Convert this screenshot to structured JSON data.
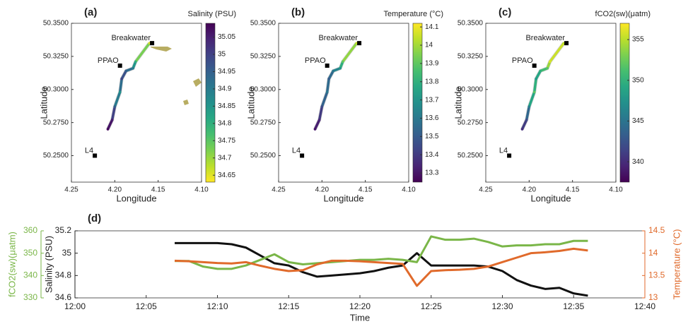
{
  "chart_data": [
    {
      "type": "map",
      "title": "(a)",
      "xlabel": "Longitude",
      "ylabel": "Latitude",
      "xlim": [
        4.25,
        4.1
      ],
      "ylim": [
        50.23,
        50.35
      ],
      "xticks": [
        4.25,
        {
          "value": 4.2,
          "label": "4.20"
        },
        4.15,
        {
          "value": 4.1,
          "label": "4.10"
        }
      ],
      "yticks": [
        {
          "value": 50.25,
          "label": "50.2500"
        },
        {
          "value": 50.275,
          "label": "50.2750"
        },
        {
          "value": 50.3,
          "label": "50.3000"
        },
        {
          "value": 50.325,
          "label": "50.3250"
        },
        {
          "value": 50.35,
          "label": "50.3500"
        }
      ],
      "markers": [
        {
          "name": "Breakwater",
          "x": 4.157,
          "y": 50.335
        },
        {
          "name": "PPAO",
          "x": 4.194,
          "y": 50.318
        },
        {
          "name": "L4",
          "x": 4.223,
          "y": 50.25
        }
      ],
      "track": {
        "x": [
          4.16,
          4.176,
          4.179,
          4.187,
          4.192,
          4.194,
          4.2,
          4.203,
          4.208
        ],
        "y": [
          50.335,
          50.321,
          50.316,
          50.314,
          50.308,
          50.298,
          50.287,
          50.277,
          50.27
        ],
        "values": [
          34.65,
          34.8,
          34.9,
          34.95,
          35.0,
          34.85,
          34.95,
          35.05,
          35.08
        ]
      },
      "colorbar": {
        "label": "Salinity (PSU)",
        "lim": [
          34.63,
          35.09
        ],
        "ticks": [
          34.65,
          34.7,
          34.75,
          34.8,
          34.85,
          34.9,
          34.95,
          35,
          35.05
        ],
        "colormap": "viridis",
        "reverse": true
      }
    },
    {
      "type": "map",
      "title": "(b)",
      "xlabel": "Longitude",
      "ylabel": "Latitude",
      "xlim": [
        4.25,
        4.1
      ],
      "ylim": [
        50.23,
        50.35
      ],
      "xticks": [
        4.25,
        {
          "value": 4.2,
          "label": "4.20"
        },
        4.15,
        {
          "value": 4.1,
          "label": "4.10"
        }
      ],
      "yticks": [
        {
          "value": 50.25,
          "label": "50.2500"
        },
        {
          "value": 50.275,
          "label": "50.2750"
        },
        {
          "value": 50.3,
          "label": "50.3000"
        },
        {
          "value": 50.325,
          "label": "50.3250"
        },
        {
          "value": 50.35,
          "label": "50.3500"
        }
      ],
      "markers": [
        {
          "name": "Breakwater",
          "x": 4.157,
          "y": 50.335
        },
        {
          "name": "PPAO",
          "x": 4.194,
          "y": 50.318
        },
        {
          "name": "L4",
          "x": 4.223,
          "y": 50.25
        }
      ],
      "track": {
        "x": [
          4.16,
          4.176,
          4.179,
          4.187,
          4.192,
          4.194,
          4.2,
          4.203,
          4.208
        ],
        "y": [
          50.335,
          50.321,
          50.316,
          50.314,
          50.308,
          50.298,
          50.287,
          50.277,
          50.27
        ],
        "values": [
          14.05,
          13.9,
          13.7,
          13.6,
          13.5,
          13.6,
          13.45,
          13.35,
          13.3
        ]
      },
      "colorbar": {
        "label": "Temperature (°C)",
        "lim": [
          13.25,
          14.12
        ],
        "ticks": [
          13.3,
          13.4,
          13.5,
          13.6,
          13.7,
          13.8,
          13.9,
          14,
          14.1
        ],
        "colormap": "viridis",
        "reverse": false
      }
    },
    {
      "type": "map",
      "title": "(c)",
      "xlabel": "Longitude",
      "ylabel": "Latitude",
      "xlim": [
        4.25,
        4.1
      ],
      "ylim": [
        50.23,
        50.35
      ],
      "xticks": [
        4.25,
        {
          "value": 4.2,
          "label": "4.20"
        },
        4.15,
        {
          "value": 4.1,
          "label": "4.10"
        }
      ],
      "yticks": [
        {
          "value": 50.25,
          "label": "50.2500"
        },
        {
          "value": 50.275,
          "label": "50.2750"
        },
        {
          "value": 50.3,
          "label": "50.3000"
        },
        {
          "value": 50.325,
          "label": "50.3250"
        },
        {
          "value": 50.35,
          "label": "50.3500"
        }
      ],
      "markers": [
        {
          "name": "Breakwater",
          "x": 4.157,
          "y": 50.335
        },
        {
          "name": "PPAO",
          "x": 4.194,
          "y": 50.318
        },
        {
          "name": "L4",
          "x": 4.223,
          "y": 50.25
        }
      ],
      "track": {
        "x": [
          4.16,
          4.176,
          4.179,
          4.187,
          4.192,
          4.194,
          4.2,
          4.203,
          4.208
        ],
        "y": [
          50.335,
          50.321,
          50.316,
          50.314,
          50.308,
          50.298,
          50.287,
          50.277,
          50.27
        ],
        "values": [
          355,
          356,
          352,
          350,
          348,
          352,
          346,
          342,
          340
        ]
      },
      "colorbar": {
        "label": "fCO2(sw)(μatm)",
        "lim": [
          337.5,
          357
        ],
        "ticks": [
          340,
          345,
          350,
          355
        ],
        "colormap": "viridis",
        "reverse": false
      }
    },
    {
      "type": "line",
      "title": "(d)",
      "xlabel": "Time",
      "x": [
        "12:07",
        "12:08",
        "12:09",
        "12:10",
        "12:11",
        "12:12",
        "12:13",
        "12:14",
        "12:15",
        "12:16",
        "12:17",
        "12:18",
        "12:19",
        "12:20",
        "12:21",
        "12:22",
        "12:23",
        "12:24",
        "12:25",
        "12:26",
        "12:27",
        "12:28",
        "12:29",
        "12:30",
        "12:31",
        "12:32",
        "12:33",
        "12:34",
        "12:35",
        "12:36"
      ],
      "xlim": [
        "12:00",
        "12:40"
      ],
      "xticks": [
        "12:00",
        "12:05",
        "12:10",
        "12:15",
        "12:20",
        "12:25",
        "12:30",
        "12:35",
        "12:40"
      ],
      "ylabel": "Salinity (PSU)",
      "ylim": [
        34.6,
        35.2
      ],
      "yticks": [
        34.6,
        34.8,
        35,
        35.2
      ],
      "y2label": "fCO2(sw)(μatm)",
      "y2lim": [
        330,
        360
      ],
      "y2ticks": [
        330,
        340,
        350,
        360
      ],
      "y2color": "#7ab648",
      "y3label": "Temperature (°C)",
      "y3lim": [
        13,
        14.5
      ],
      "y3ticks": [
        13,
        13.5,
        14,
        14.5
      ],
      "y3color": "#e06a2b",
      "series": [
        {
          "color": "#111111",
          "axis": "y",
          "values": [
            35.09,
            35.09,
            35.09,
            35.09,
            35.08,
            35.05,
            34.98,
            34.91,
            34.89,
            34.83,
            34.79,
            34.8,
            34.81,
            34.82,
            34.84,
            34.87,
            34.89,
            35.0,
            34.89,
            34.89,
            34.89,
            34.89,
            34.88,
            34.84,
            34.76,
            34.71,
            34.68,
            34.69,
            34.64,
            34.62
          ]
        },
        {
          "color": "#7ab648",
          "axis": "y2",
          "values": [
            346.5,
            346.5,
            344,
            343,
            343,
            344.5,
            347,
            349.5,
            346,
            345,
            345.5,
            346,
            346.5,
            347,
            347,
            347.5,
            347,
            346,
            357.5,
            356,
            356,
            356.5,
            355,
            353,
            353.5,
            353.5,
            354,
            354,
            355.5,
            355.5
          ]
        },
        {
          "color": "#e06a2b",
          "axis": "y3",
          "values": [
            13.83,
            13.82,
            13.8,
            13.78,
            13.77,
            13.8,
            13.72,
            13.65,
            13.6,
            13.62,
            13.75,
            13.83,
            13.83,
            13.82,
            13.8,
            13.78,
            13.76,
            13.27,
            13.6,
            13.62,
            13.63,
            13.65,
            13.7,
            13.8,
            13.9,
            14.0,
            14.02,
            14.05,
            14.1,
            14.06
          ]
        }
      ]
    }
  ]
}
